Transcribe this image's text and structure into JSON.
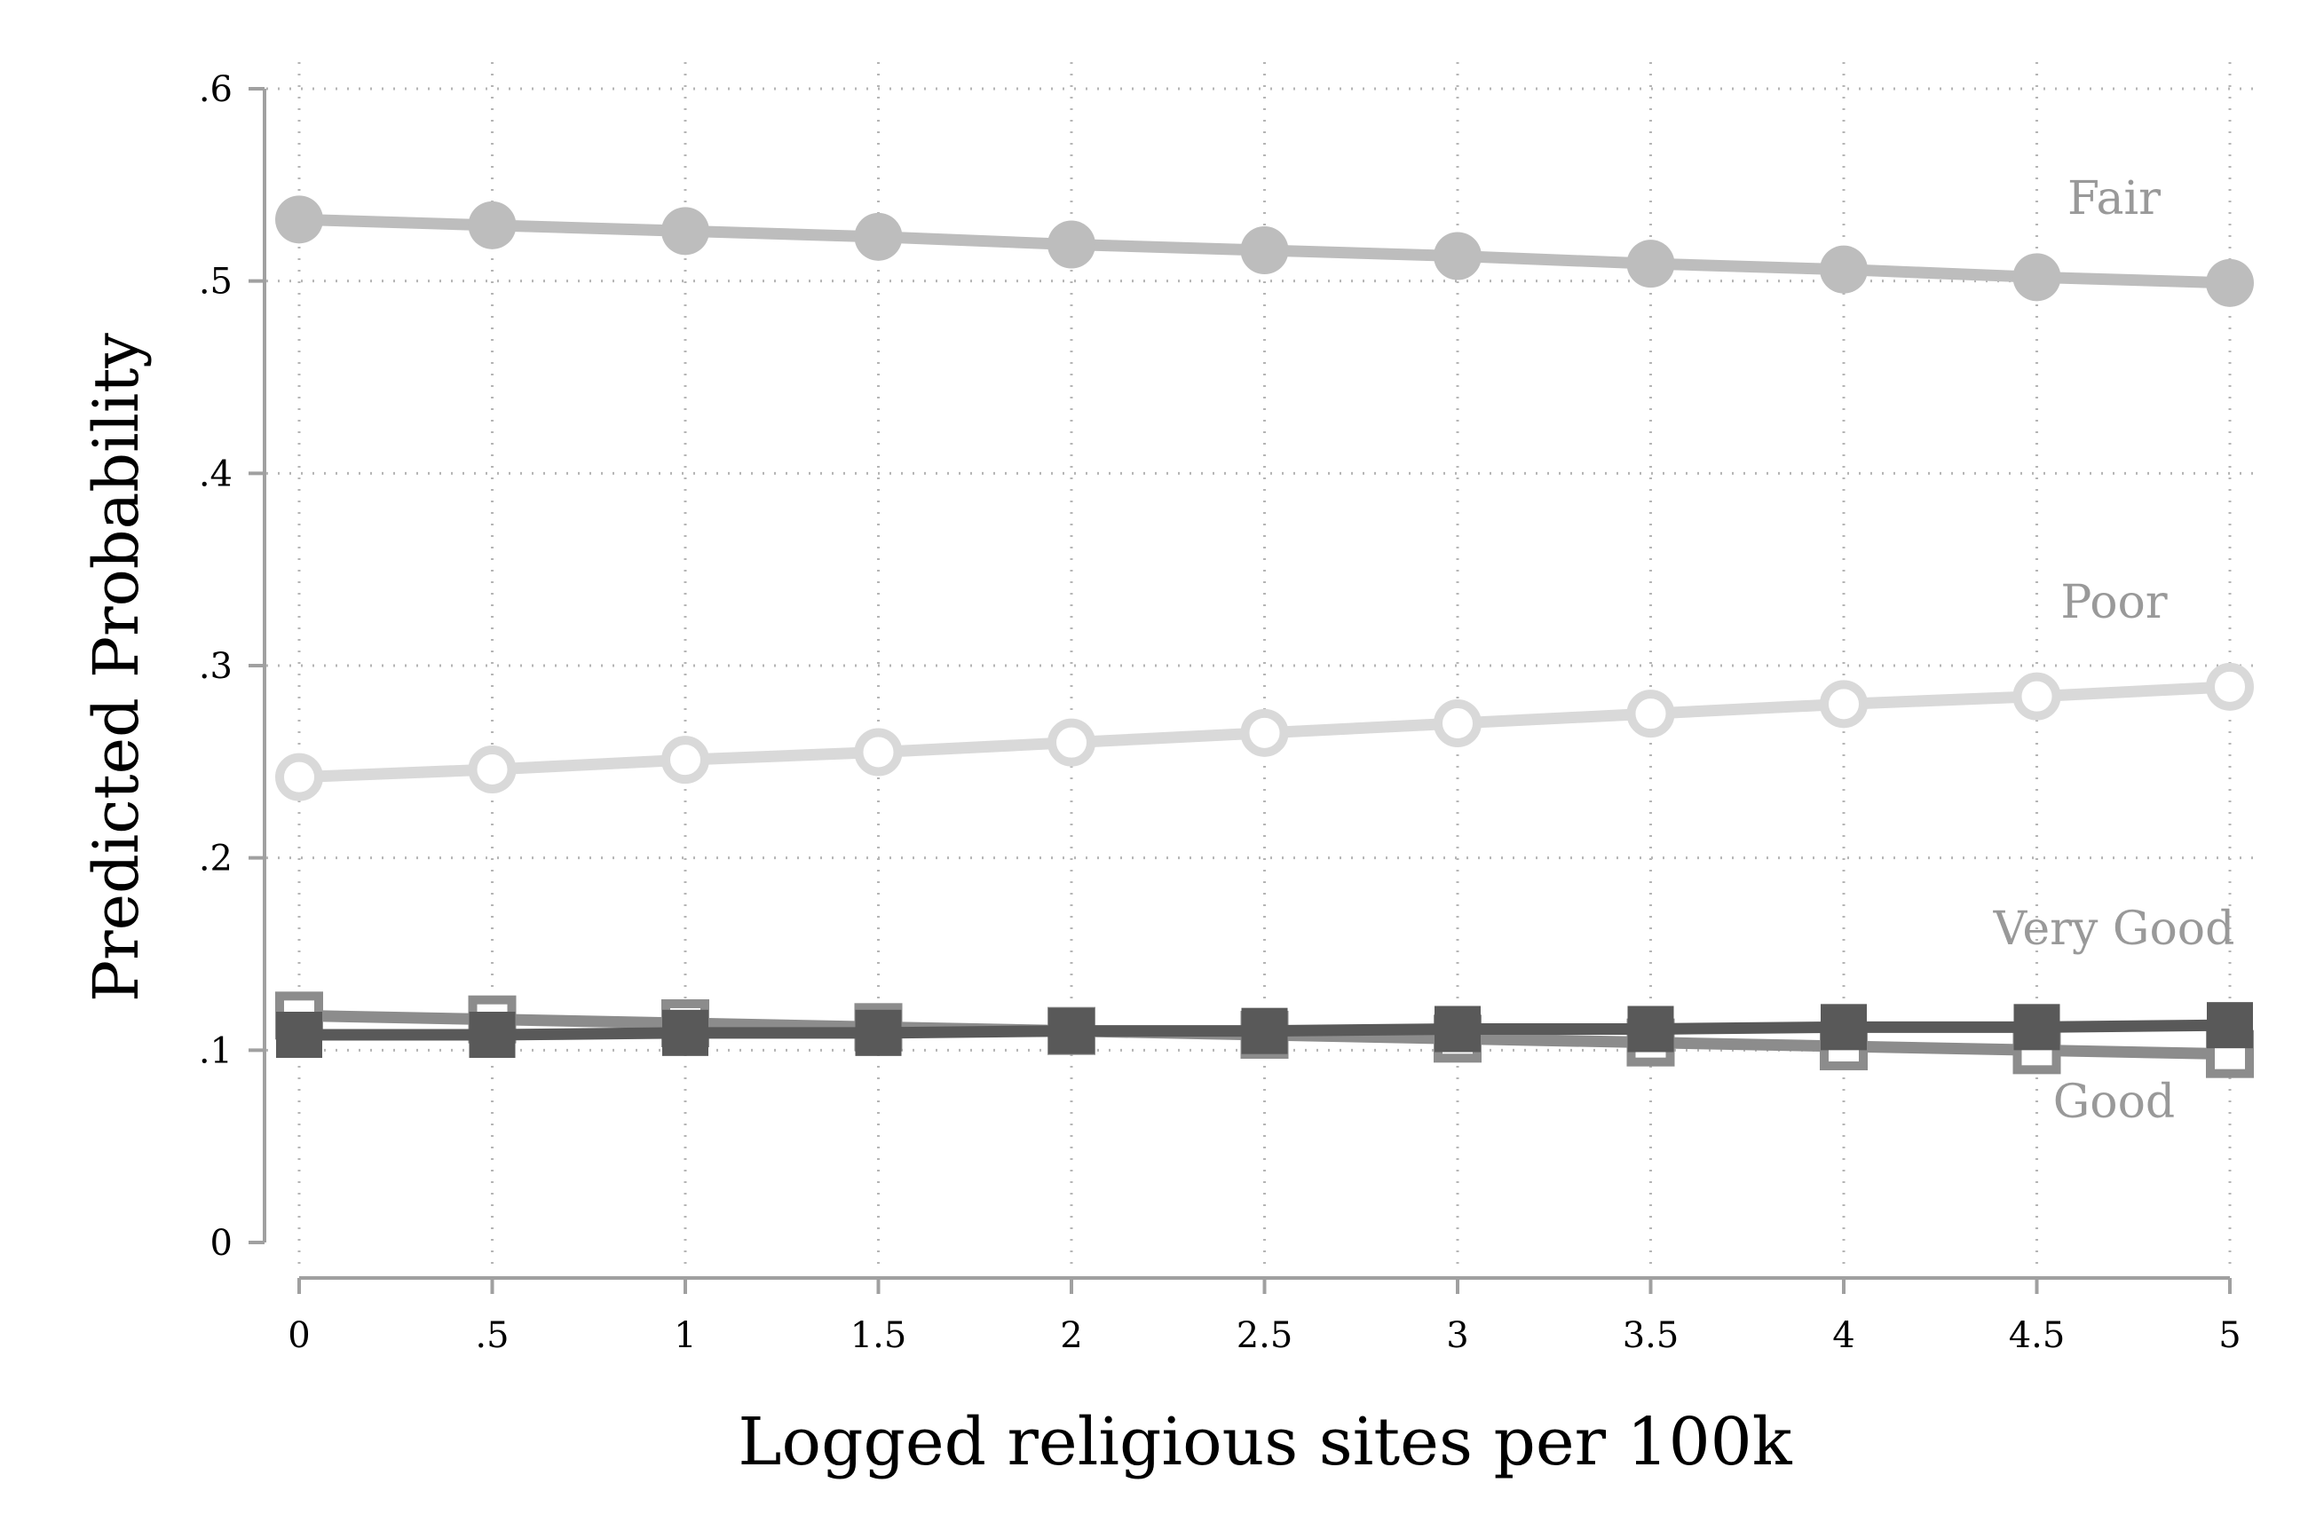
{
  "chart_data": {
    "type": "line",
    "title": "",
    "xlabel": "Logged religious sites per 100k",
    "ylabel": "Predicted Probability",
    "xlim": [
      0,
      5
    ],
    "ylim": [
      0,
      0.6
    ],
    "x": [
      0,
      0.5,
      1,
      1.5,
      2,
      2.5,
      3,
      3.5,
      4,
      4.5,
      5
    ],
    "x_tick_labels": [
      "0",
      ".5",
      "1",
      "1.5",
      "2",
      "2.5",
      "3",
      "3.5",
      "4",
      "4.5",
      "5"
    ],
    "y_ticks": [
      0,
      0.1,
      0.2,
      0.3,
      0.4,
      0.5,
      0.6
    ],
    "y_tick_labels": [
      "0",
      ".1",
      ".2",
      ".3",
      ".4",
      ".5",
      ".6"
    ],
    "grid": true,
    "legend": "none",
    "series": [
      {
        "name": "Fair",
        "marker": "filled-circle",
        "color": "#bdbdbd",
        "values": [
          0.532,
          0.529,
          0.526,
          0.523,
          0.519,
          0.516,
          0.513,
          0.509,
          0.506,
          0.502,
          0.499
        ]
      },
      {
        "name": "Poor",
        "marker": "hollow-circle",
        "color": "#d9d9d9",
        "values": [
          0.242,
          0.246,
          0.251,
          0.255,
          0.26,
          0.265,
          0.27,
          0.275,
          0.28,
          0.284,
          0.289
        ]
      },
      {
        "name": "Good",
        "marker": "hollow-square",
        "color": "#8c8c8c",
        "values": [
          0.118,
          0.116,
          0.114,
          0.112,
          0.11,
          0.108,
          0.106,
          0.104,
          0.102,
          0.1,
          0.098
        ]
      },
      {
        "name": "Very Good",
        "marker": "filled-square",
        "color": "#595959",
        "values": [
          0.108,
          0.108,
          0.109,
          0.109,
          0.11,
          0.11,
          0.111,
          0.111,
          0.112,
          0.112,
          0.113
        ]
      }
    ],
    "series_labels": [
      {
        "text": "Fair",
        "x": 4.7,
        "y": 0.535,
        "color": "#999999"
      },
      {
        "text": "Poor",
        "x": 4.7,
        "y": 0.325,
        "color": "#999999"
      },
      {
        "text": "Very Good",
        "x": 4.7,
        "y": 0.155,
        "color": "#999999"
      },
      {
        "text": "Good",
        "x": 4.7,
        "y": 0.065,
        "color": "#999999"
      }
    ]
  }
}
